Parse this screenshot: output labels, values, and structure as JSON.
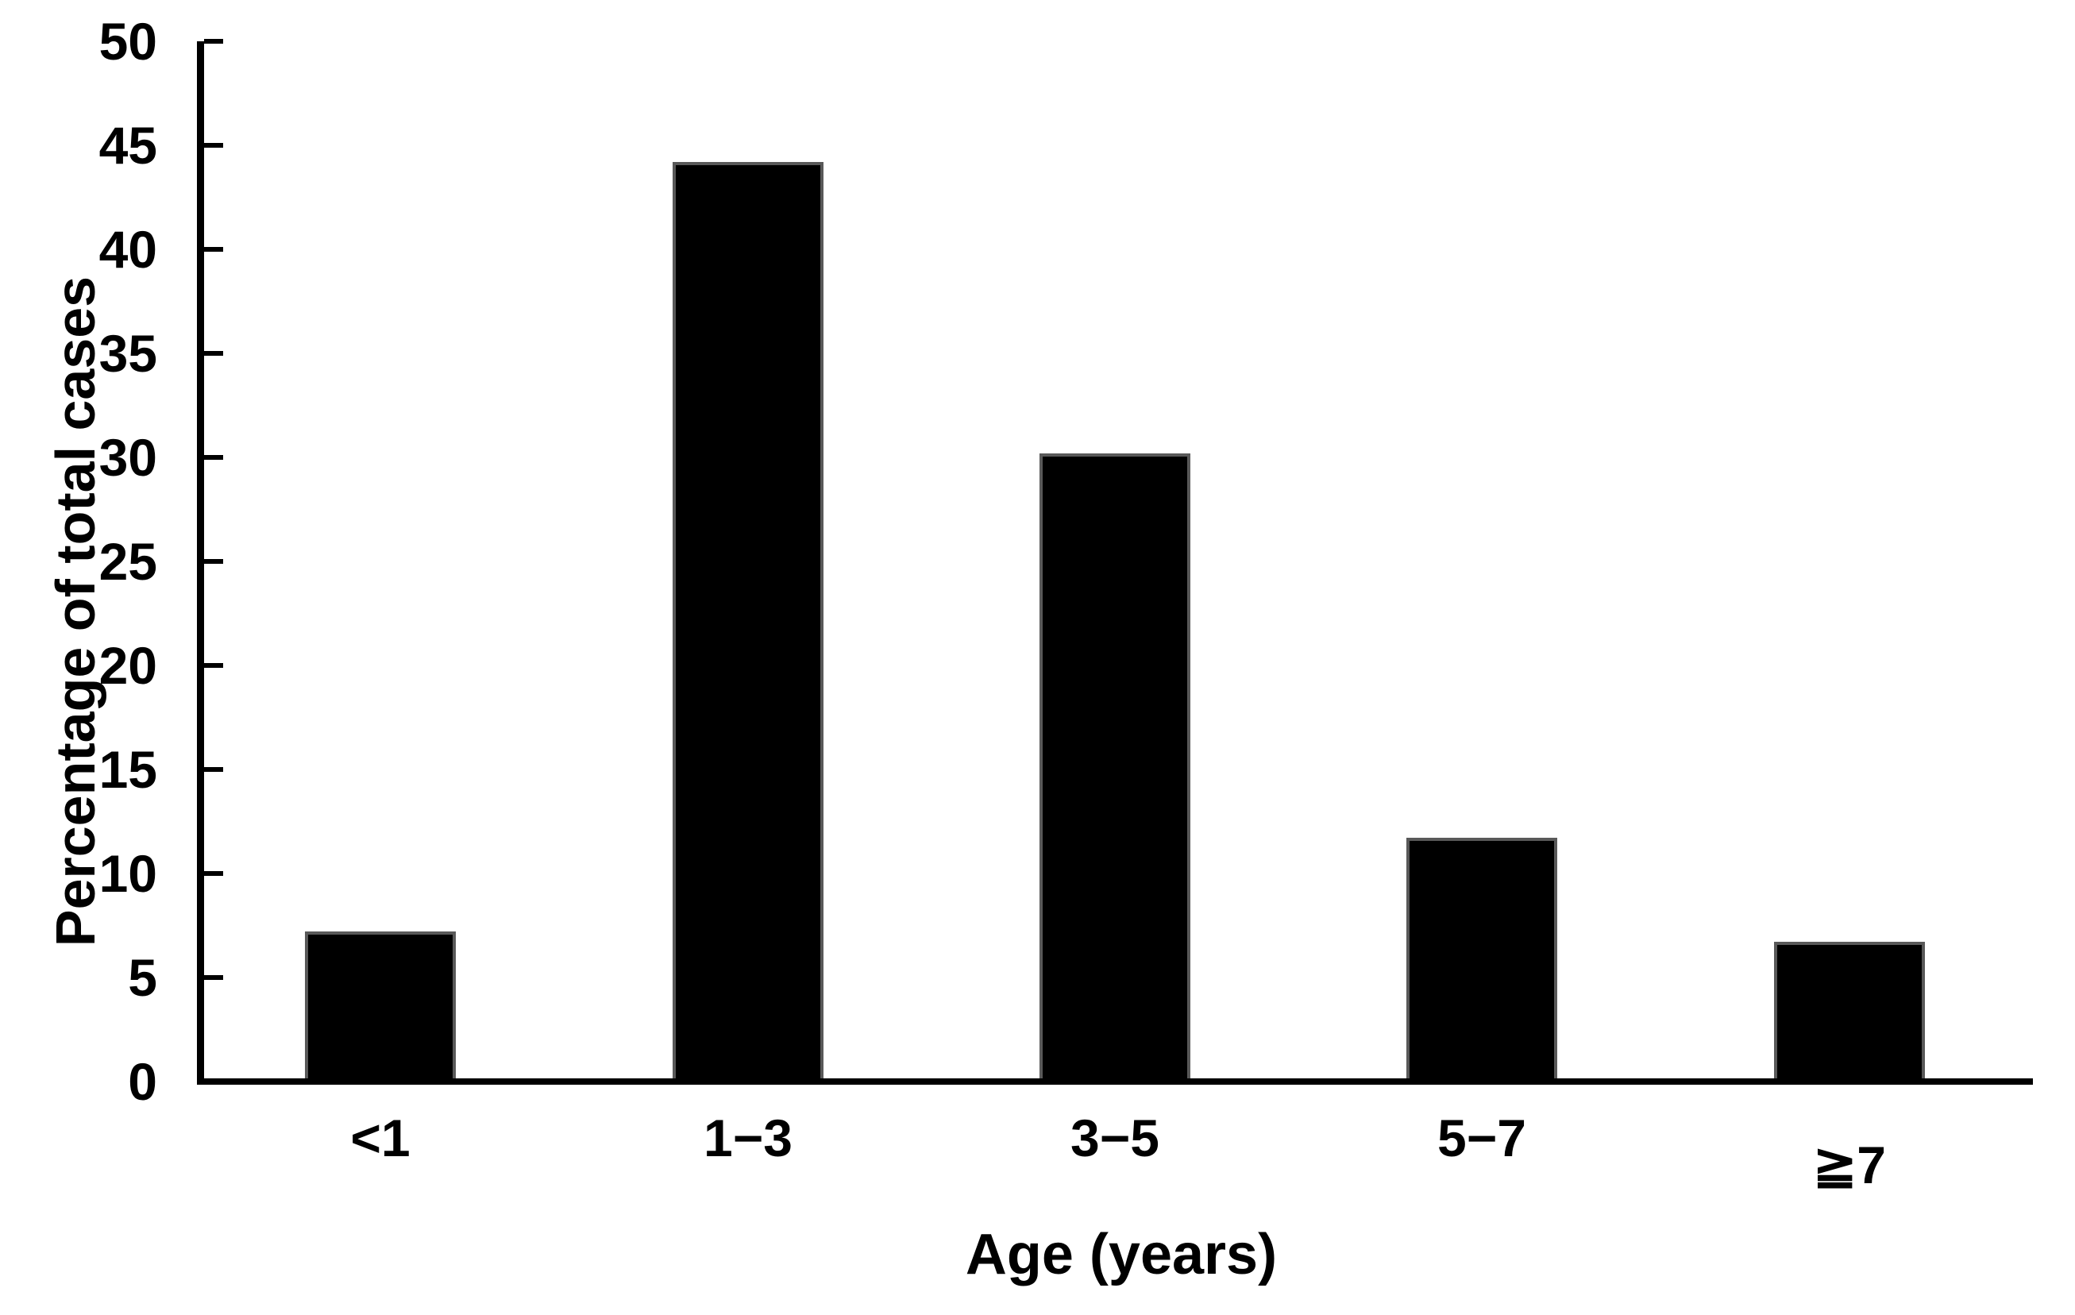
{
  "chart_data": {
    "type": "bar",
    "title": "",
    "categories": [
      "<1",
      "1−3",
      "3−5",
      "5−7",
      "≧7"
    ],
    "values": [
      7.2,
      44.2,
      30.2,
      11.7,
      6.7
    ],
    "xlabel": "Age (years)",
    "ylabel": "Percentage of total cases",
    "ylim": [
      0,
      50
    ],
    "ytick_step": 5,
    "yticks": [
      0,
      5,
      10,
      15,
      20,
      25,
      30,
      35,
      40,
      45,
      50
    ],
    "grid": false,
    "legend_position": "none",
    "colors": {
      "bar_fill": "#000000",
      "bar_border": "#595959",
      "axis": "#000000",
      "text": "#000000",
      "background": "#ffffff"
    }
  }
}
